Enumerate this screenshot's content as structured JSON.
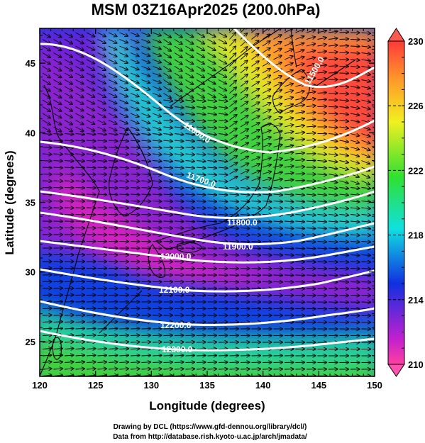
{
  "title": "MSM 03Z16Apr2025 (200.0hPa)",
  "xlabel": "Longitude (degrees)",
  "ylabel": "Latitude  (degrees)",
  "credits": [
    "Drawing by DCL (https://www.gfd-dennou.org/library/dcl/)",
    "Data from http://database.rish.kyoto-u.ac.jp/arch/jmadata/"
  ],
  "map": {
    "lon_range": [
      120,
      150
    ],
    "lat_range": [
      22.5,
      47.5
    ],
    "lon_ticks": [
      "120",
      "125",
      "130",
      "135",
      "140",
      "145",
      "150"
    ],
    "lat_ticks": [
      "25",
      "30",
      "35",
      "40",
      "45"
    ]
  },
  "colorbar": {
    "min": 210,
    "max": 230,
    "labels": [
      "230",
      "226",
      "222",
      "218",
      "214",
      "210"
    ],
    "colors": [
      "#ff3a3a",
      "#ff9a2a",
      "#f0f020",
      "#30e030",
      "#10e0e0",
      "#1030e0",
      "#c020d0",
      "#ff40a0"
    ]
  },
  "contours": {
    "labels": [
      "11500.0",
      "11600.0",
      "11700.0",
      "11800.0",
      "11900.0",
      "12000.0",
      "12100.0",
      "12200.0",
      "12300.0"
    ]
  }
}
